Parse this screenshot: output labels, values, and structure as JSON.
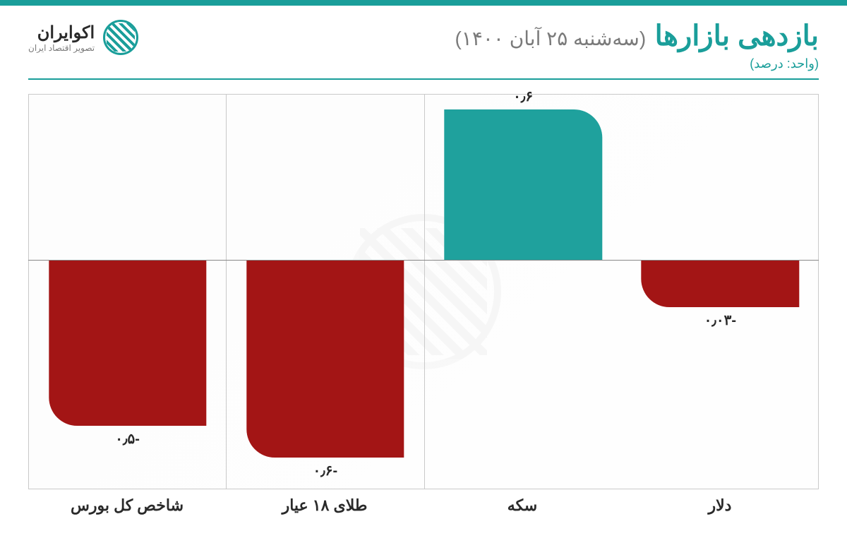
{
  "header": {
    "title": "بازدهی بازارها",
    "subtitle": "(سه‌شنبه ۲۵ آبان ۱۴۰۰)",
    "unit": "(واحد: درصد)"
  },
  "logo": {
    "name": "اکوایران",
    "tagline": "تصویر اقتصاد ایران"
  },
  "chart": {
    "type": "bar",
    "baseline_pct_from_top": 42,
    "background_color": "#ffffff",
    "grid_color": "#c9c9c9",
    "accent_color": "#1a9e9a",
    "positive_color": "#1fa19d",
    "negative_color": "#a31515",
    "label_color": "#2a2a2a",
    "bar_width_pct": 80,
    "value_fontsize": 20,
    "axis_fontsize": 22,
    "ylim": [
      -0.7,
      0.7
    ],
    "series": [
      {
        "category": "شاخص کل بورس",
        "value": -0.5,
        "display": "-۰٫۵",
        "height_pct": 42,
        "color": "#a31515"
      },
      {
        "category": "طلای ۱۸ عیار",
        "value": -0.6,
        "display": "-۰٫۶",
        "height_pct": 50,
        "color": "#a31515"
      },
      {
        "category": "سکه",
        "value": 0.6,
        "display": "۰٫۶",
        "height_pct": 38,
        "color": "#1fa19d"
      },
      {
        "category": "دلار",
        "value": -0.03,
        "display": "-۰٫۰۳",
        "height_pct": 12,
        "color": "#a31515"
      }
    ]
  }
}
